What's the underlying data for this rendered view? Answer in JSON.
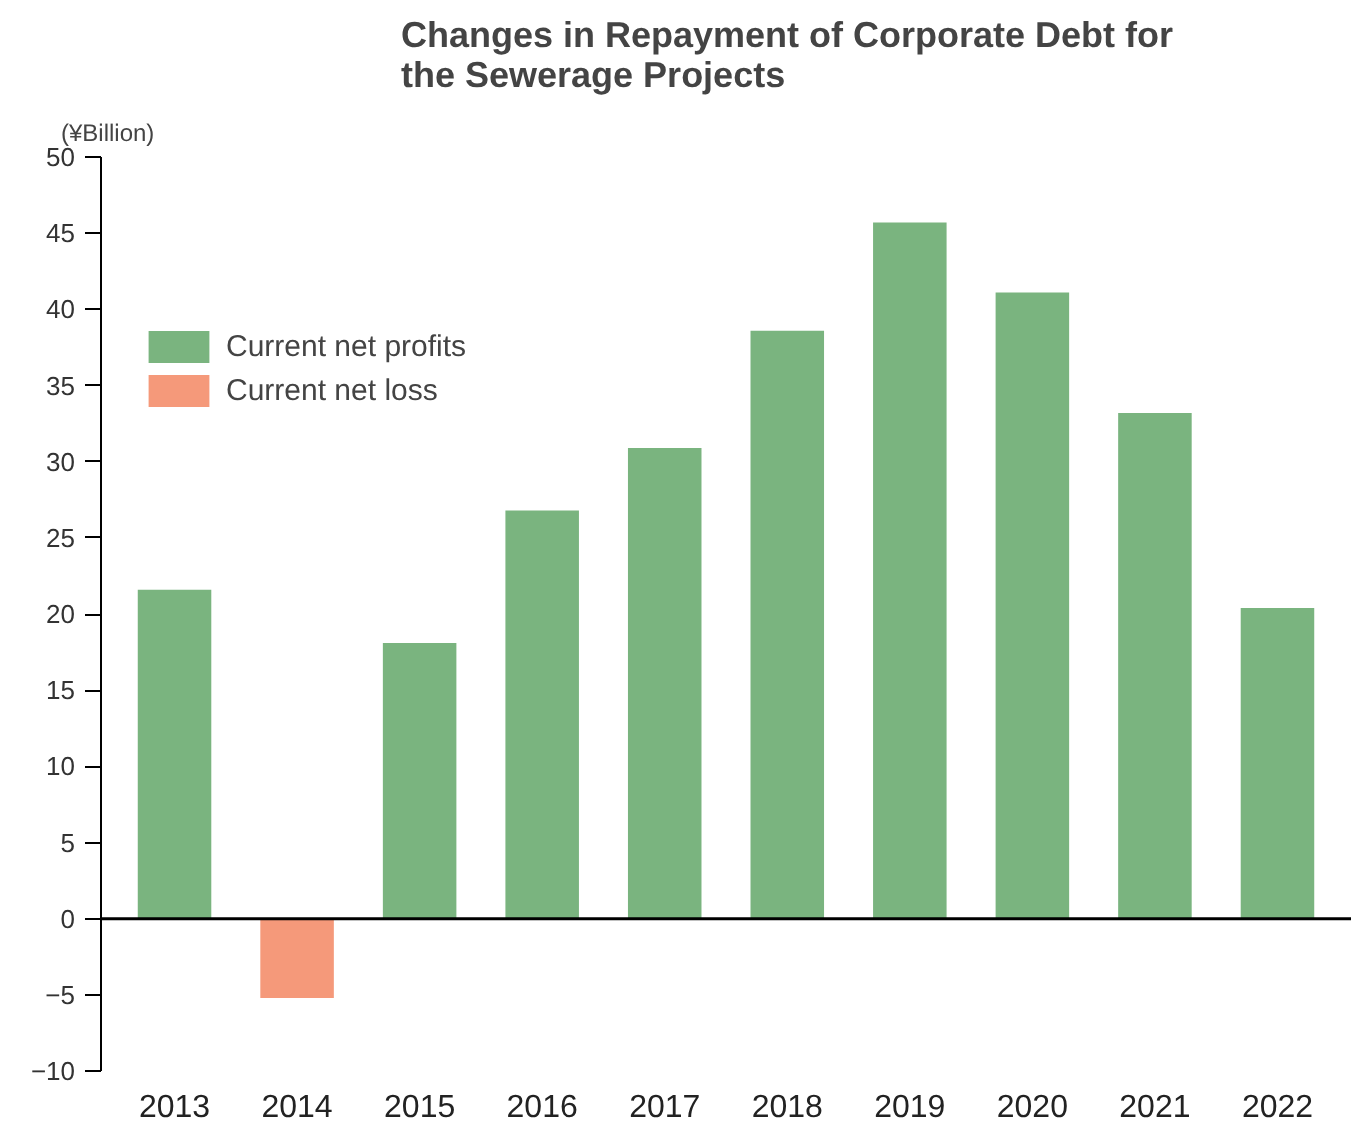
{
  "chart_data": {
    "type": "bar",
    "title": "Changes in Repayment of Corporate Debt for\nthe Sewerage Projects",
    "ylabel": "(¥Billion)",
    "categories": [
      "2013",
      "2014",
      "2015",
      "2016",
      "2017",
      "2018",
      "2019",
      "2020",
      "2021",
      "2022"
    ],
    "stacked": true,
    "series": [
      {
        "name": "Current net profits",
        "color": "#7ab47f",
        "values": [
          21.6,
          null,
          18.1,
          26.8,
          30.9,
          38.6,
          45.7,
          41.1,
          33.2,
          20.4
        ]
      },
      {
        "name": "Current net loss",
        "color": "#f5997a",
        "values": [
          null,
          -5.2,
          null,
          null,
          null,
          null,
          null,
          null,
          null,
          null
        ]
      }
    ],
    "ylim": [
      -10,
      50
    ],
    "yticks": [
      -10,
      -5,
      0,
      5,
      10,
      15,
      20,
      25,
      30,
      35,
      40,
      45,
      50
    ],
    "ref_lines": [
      {
        "axis": "y",
        "value": 0,
        "color": "#000000"
      }
    ],
    "grid": false,
    "legend": "top left"
  }
}
